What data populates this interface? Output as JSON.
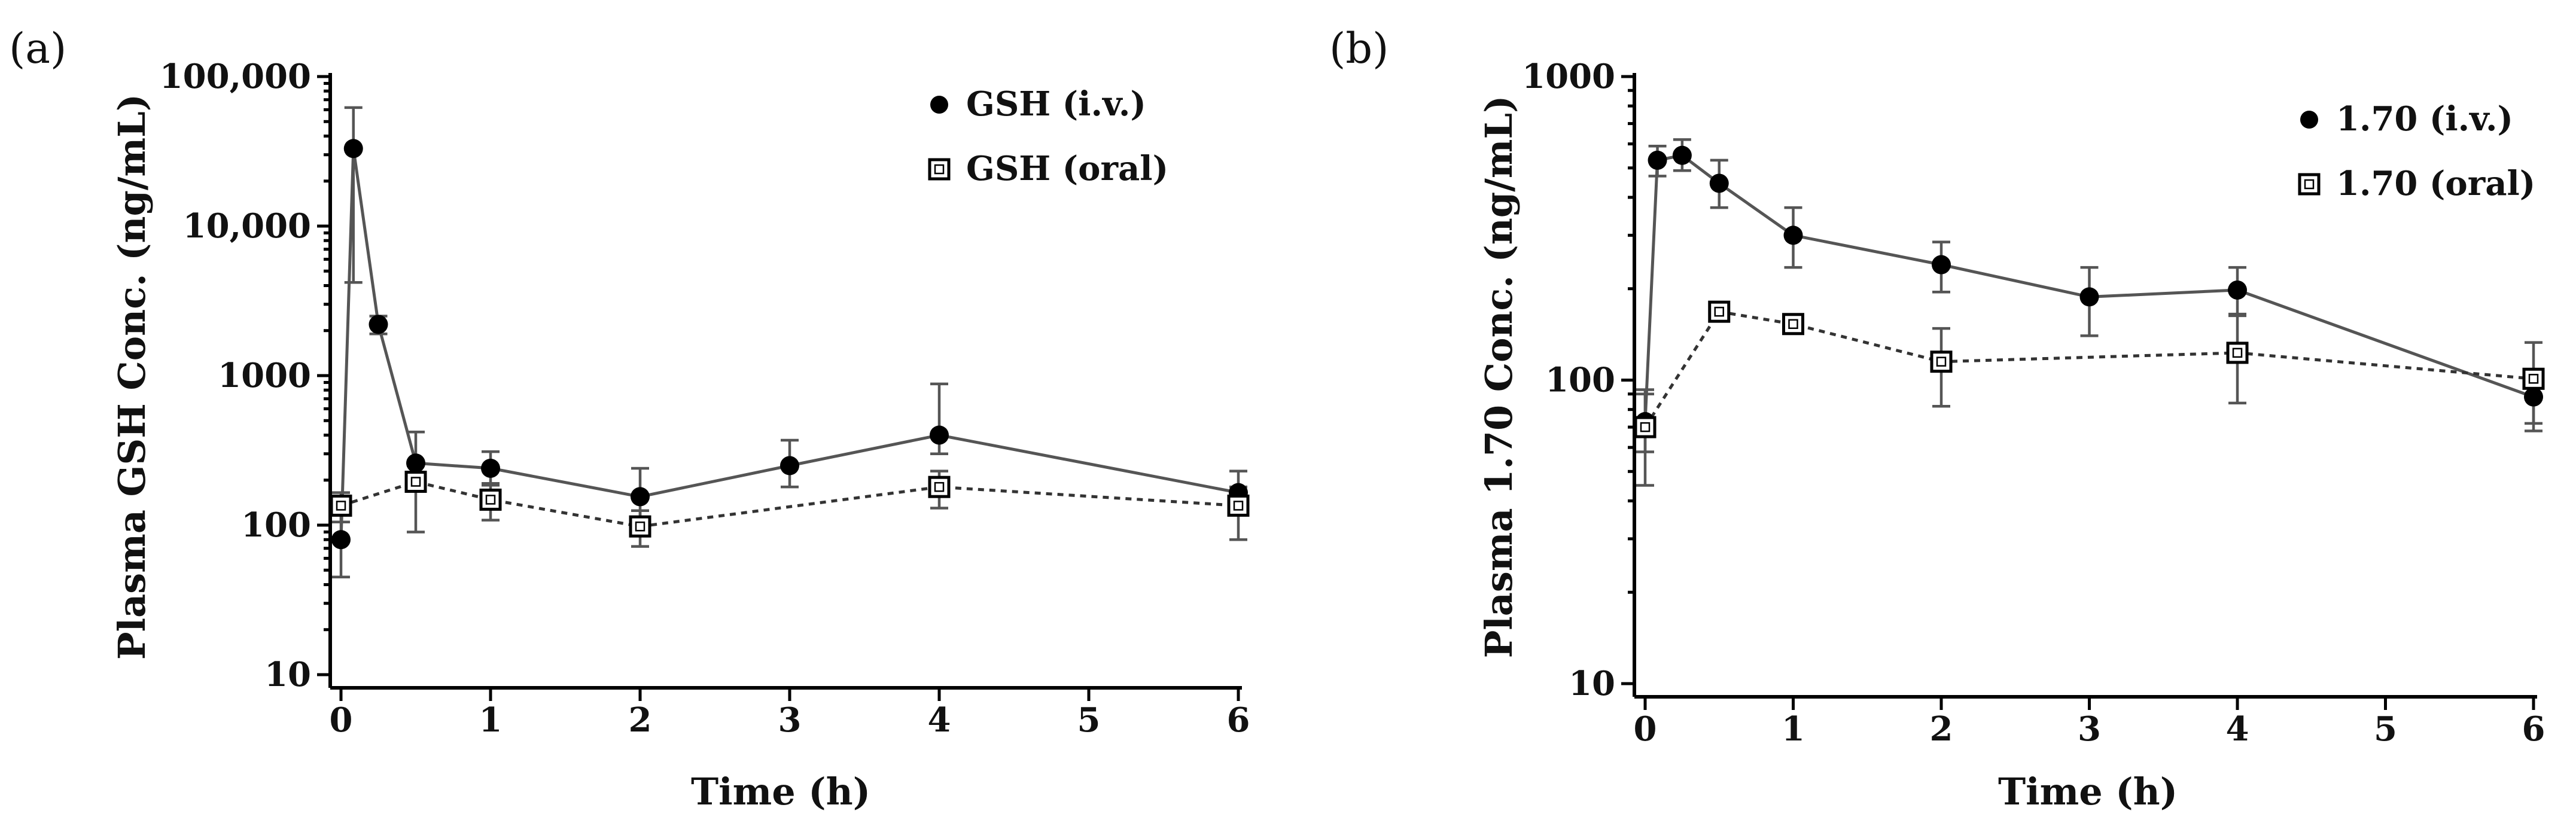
{
  "chart_data": [
    {
      "type": "line",
      "panel_label": "(a)",
      "title": "",
      "xlabel": "Time (h)",
      "ylabel": "Plasma GSH Conc. (ng/mL)",
      "yscale": "log",
      "xlim": [
        0,
        6
      ],
      "ylim": [
        10,
        100000
      ],
      "xticks": [
        0,
        1,
        2,
        3,
        4,
        5,
        6
      ],
      "xtick_labels": [
        "0",
        "1",
        "2",
        "3",
        "4",
        "5",
        "6"
      ],
      "yticks": [
        10,
        100,
        1000,
        10000,
        100000
      ],
      "ytick_labels": [
        "10",
        "100",
        "1000",
        "10,000",
        "100,000"
      ],
      "legend_position": "top-right",
      "series": [
        {
          "name": "GSH (i.v.)",
          "marker": "filled-circle",
          "line": "solid",
          "x": [
            0,
            0.083,
            0.25,
            0.5,
            1,
            2,
            3,
            4,
            6
          ],
          "y": [
            80,
            33000,
            2200,
            260,
            240,
            155,
            250,
            400,
            165
          ],
          "err_upper": [
            130,
            62000,
            2500,
            420,
            310,
            240,
            370,
            880,
            230
          ],
          "err_lower": [
            45,
            4200,
            1900,
            200,
            190,
            110,
            180,
            300,
            120
          ]
        },
        {
          "name": "GSH (oral)",
          "marker": "open-square",
          "line": "dashed",
          "x": [
            0,
            0.5,
            1,
            2,
            4,
            6
          ],
          "y": [
            135,
            195,
            148,
            98,
            180,
            135
          ],
          "err_upper": [
            165,
            250,
            185,
            125,
            230,
            180
          ],
          "err_lower": [
            105,
            90,
            108,
            72,
            130,
            80
          ]
        }
      ]
    },
    {
      "type": "line",
      "panel_label": "(b)",
      "title": "",
      "xlabel": "Time (h)",
      "ylabel": "Plasma 1.70 Conc. (ng/mL)",
      "yscale": "log",
      "xlim": [
        0,
        6
      ],
      "ylim": [
        10,
        1000
      ],
      "xticks": [
        0,
        1,
        2,
        3,
        4,
        5,
        6
      ],
      "xtick_labels": [
        "0",
        "1",
        "2",
        "3",
        "4",
        "5",
        "6"
      ],
      "yticks": [
        10,
        100,
        1000
      ],
      "ytick_labels": [
        "10",
        "100",
        "1000"
      ],
      "legend_position": "top-right",
      "series": [
        {
          "name": "1.70 (i.v.)",
          "marker": "filled-circle",
          "line": "solid",
          "x": [
            0,
            0.083,
            0.25,
            0.5,
            1,
            2,
            3,
            4,
            6
          ],
          "y": [
            73,
            530,
            550,
            445,
            300,
            240,
            188,
            198,
            88
          ],
          "err_upper": [
            93,
            590,
            620,
            530,
            370,
            285,
            235,
            235,
            100
          ],
          "err_lower": [
            58,
            470,
            490,
            370,
            235,
            195,
            140,
            165,
            68
          ]
        },
        {
          "name": "1.70 (oral)",
          "marker": "open-square",
          "line": "dashed",
          "x": [
            0,
            0.5,
            1,
            2,
            4,
            6
          ],
          "y": [
            70,
            168,
            153,
            115,
            123,
            101
          ],
          "err_upper": [
            90,
            175,
            160,
            148,
            163,
            133
          ],
          "err_lower": [
            45,
            160,
            146,
            82,
            84,
            72
          ]
        }
      ]
    }
  ]
}
